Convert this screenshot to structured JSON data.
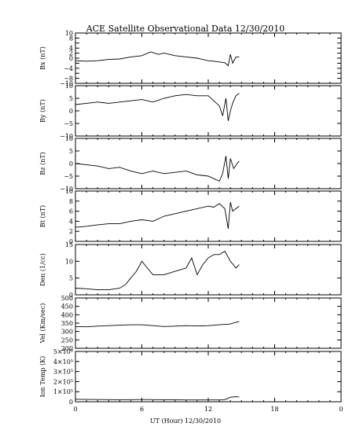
{
  "title": "ACE Satellite Observational Data   12/30/2010",
  "x_axis": {
    "label": "UT (Hour)   12/30/2010",
    "ticks": [
      "0",
      "6",
      "12",
      "18",
      "0"
    ],
    "range_hours": [
      0,
      24
    ]
  },
  "chart_data": [
    {
      "type": "line",
      "ylabel": "Bx (nT)",
      "ylim": [
        -10,
        10
      ],
      "ytick_values": [
        -10,
        -8,
        -6,
        -4,
        -2,
        0,
        2,
        4,
        6,
        8,
        10
      ],
      "ytick_labels": [
        "−10",
        "−8",
        "",
        "−4",
        "",
        "0",
        "2",
        "4",
        "",
        "8",
        "10"
      ],
      "x": [
        0,
        1,
        2,
        3,
        4,
        5,
        6,
        6.8,
        7.5,
        8,
        9,
        10,
        11,
        12,
        12.5,
        13,
        13.5,
        13.8,
        14,
        14.2,
        14.5,
        14.8
      ],
      "values": [
        -1,
        -1.2,
        -1,
        -0.5,
        -0.3,
        0.5,
        1,
        2.5,
        1.5,
        2,
        1,
        0.5,
        0,
        -1,
        -1.2,
        -1.5,
        -1.8,
        -3,
        1.5,
        -2,
        0.5,
        0.5
      ]
    },
    {
      "type": "line",
      "ylabel": "By (nT)",
      "ylim": [
        -10,
        10
      ],
      "ytick_values": [
        -10,
        -5,
        0,
        5,
        10
      ],
      "ytick_labels": [
        "−10",
        "−5",
        "0",
        "5",
        "10"
      ],
      "x": [
        0,
        1,
        2,
        3,
        4,
        5,
        6,
        7,
        8,
        9,
        10,
        11,
        12,
        12.5,
        13,
        13.3,
        13.6,
        13.8,
        14,
        14.2,
        14.5,
        14.8
      ],
      "values": [
        2.5,
        3,
        3.5,
        3,
        3.5,
        4,
        4.5,
        3.5,
        5,
        6,
        6.5,
        6,
        6,
        4,
        2,
        -2,
        5,
        -4,
        0,
        3,
        6,
        7
      ]
    },
    {
      "type": "line",
      "ylabel": "Bz (nT)",
      "ylim": [
        -10,
        10
      ],
      "ytick_values": [
        -10,
        -5,
        0,
        5,
        10
      ],
      "ytick_labels": [
        "−10",
        "−5",
        "0",
        "5",
        "10"
      ],
      "x": [
        0,
        1,
        2,
        3,
        4,
        5,
        6,
        7,
        8,
        9,
        10,
        11,
        12,
        12.5,
        13,
        13.3,
        13.6,
        13.8,
        14,
        14.3,
        14.6,
        14.8
      ],
      "values": [
        0,
        -0.5,
        -1,
        -2,
        -1.5,
        -3,
        -4,
        -3,
        -4,
        -3.5,
        -3,
        -4.5,
        -5,
        -6,
        -7,
        -4,
        3,
        -6,
        2,
        -2,
        0,
        1
      ]
    },
    {
      "type": "line",
      "ylabel": "Bt (nT)",
      "ylim": [
        0,
        10
      ],
      "ytick_values": [
        0,
        2,
        4,
        6,
        8,
        10
      ],
      "ytick_labels": [
        "0",
        "2",
        "4",
        "6",
        "8",
        "10"
      ],
      "x": [
        0,
        1,
        2,
        3,
        4,
        5,
        6,
        7,
        8,
        9,
        10,
        11,
        12,
        12.5,
        13,
        13.5,
        13.8,
        14,
        14.2,
        14.5,
        14.8
      ],
      "values": [
        2.8,
        3,
        3.3,
        3.5,
        3.5,
        4,
        4.3,
        4,
        5,
        5.5,
        6,
        6.5,
        7,
        6.8,
        7.5,
        6.5,
        2.5,
        7.8,
        6,
        6.5,
        7
      ]
    },
    {
      "type": "line",
      "ylabel": "Den (1/cc)",
      "ylim": [
        0,
        15
      ],
      "ytick_values": [
        0,
        5,
        10,
        15
      ],
      "ytick_labels": [
        "0",
        "5",
        "10",
        "15"
      ],
      "x": [
        0,
        1,
        2,
        3,
        4,
        4.5,
        5,
        5.5,
        6,
        6.5,
        7,
        8,
        9,
        10,
        10.5,
        11,
        11.5,
        12,
        12.5,
        13,
        13.5,
        14,
        14.5,
        14.8
      ],
      "values": [
        2,
        1.8,
        1.5,
        1.5,
        2,
        3,
        5,
        7,
        10,
        8,
        6,
        6,
        7,
        8,
        11,
        6,
        9,
        11,
        12,
        12,
        13,
        10,
        8,
        9
      ]
    },
    {
      "type": "line",
      "ylabel": "Vel (Km/sec)",
      "ylim": [
        200,
        500
      ],
      "ytick_values": [
        200,
        250,
        300,
        350,
        400,
        450,
        500
      ],
      "ytick_labels": [
        "200",
        "250",
        "300",
        "350",
        "400",
        "450",
        "500"
      ],
      "x": [
        0,
        1,
        2,
        3,
        4,
        5,
        6,
        7,
        8,
        9,
        10,
        11,
        12,
        13,
        14,
        14.5,
        14.8
      ],
      "values": [
        330,
        328,
        332,
        335,
        338,
        340,
        340,
        335,
        330,
        332,
        335,
        333,
        335,
        340,
        345,
        355,
        360
      ]
    },
    {
      "type": "line",
      "ylabel": "Ion Temp (K)",
      "ylim": [
        0,
        500000
      ],
      "ytick_values": [
        0,
        100000,
        200000,
        300000,
        400000,
        500000
      ],
      "ytick_labels": [
        "0",
        "1×10⁵",
        "2×10⁵",
        "3×10⁵",
        "4×10⁵",
        "5×10⁵"
      ],
      "x": [
        0,
        2,
        4,
        6,
        8,
        10,
        12,
        13,
        13.5,
        14,
        14.5,
        14.8
      ],
      "values": [
        25000,
        22000,
        20000,
        22000,
        20000,
        18000,
        18000,
        18000,
        20000,
        45000,
        50000,
        48000
      ]
    }
  ]
}
